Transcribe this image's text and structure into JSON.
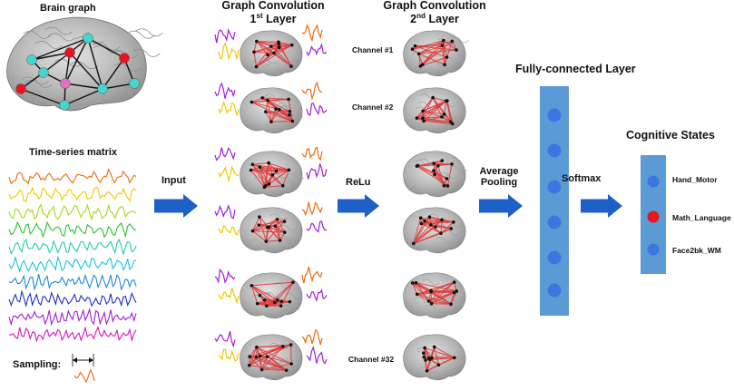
{
  "titles": {
    "brain_graph": "Brain graph",
    "time_series": "Time-series matrix",
    "gc1_line1": "Graph Convolution",
    "gc1_line2_num": "1",
    "gc1_line2_sup": "st",
    "gc1_line2_rest": " Layer",
    "gc2_line1": "Graph Convolution",
    "gc2_line2_num": "2",
    "gc2_line2_sup": "nd",
    "gc2_line2_rest": " Layer",
    "fc": "Fully-connected Layer",
    "cognitive": "Cognitive States"
  },
  "arrows": {
    "input": "Input",
    "relu": "ReLu",
    "pool_line1": "Average",
    "pool_line2": "Pooling",
    "softmax": "Softmax"
  },
  "channels": [
    "Channel #1",
    "Channel #2",
    "Channel #32"
  ],
  "sampling": "Sampling:",
  "states": [
    "Hand_Motor",
    "Math_Language",
    "Face2bk_WM"
  ],
  "colors": {
    "arrow": "#1f5fc8",
    "fc_bar": "#5b9bd5",
    "fc_node": "#3a78e0",
    "selected_state": "#e8141e",
    "edge": "#e03a3a",
    "brain": "#a8a8a8",
    "series": [
      "#ee6a10",
      "#f0c800",
      "#a0dc20",
      "#30c030",
      "#20d0a0",
      "#20c0e0",
      "#1e8ad8",
      "#2030c8",
      "#a020d8",
      "#d818b8"
    ],
    "node_colors": [
      "#44d6cc",
      "#e8141e",
      "#e070c0"
    ]
  }
}
